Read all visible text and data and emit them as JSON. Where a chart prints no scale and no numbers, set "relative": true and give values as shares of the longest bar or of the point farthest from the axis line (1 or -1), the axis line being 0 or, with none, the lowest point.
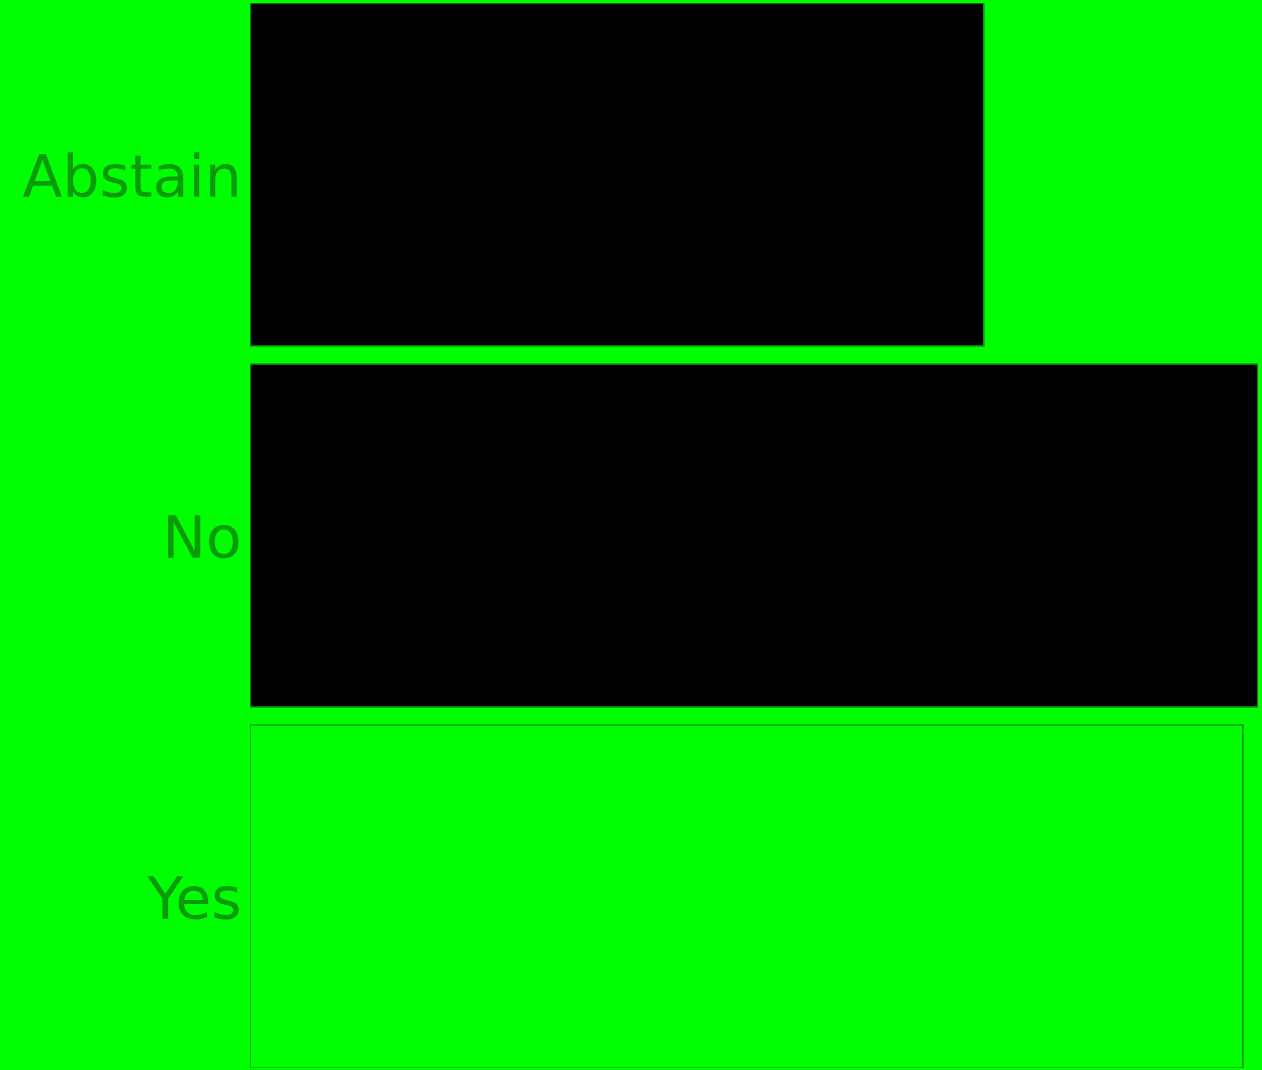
{
  "chart_data": {
    "type": "bar",
    "orientation": "horizontal",
    "relative": true,
    "categories": [
      "Abstain",
      "No",
      "Yes"
    ],
    "values": [
      0.728,
      1,
      0.985
    ],
    "colors": [
      "#000000",
      "#000000",
      "#00ff00"
    ],
    "tick_labels": "y",
    "grid": false,
    "legend": false
  }
}
